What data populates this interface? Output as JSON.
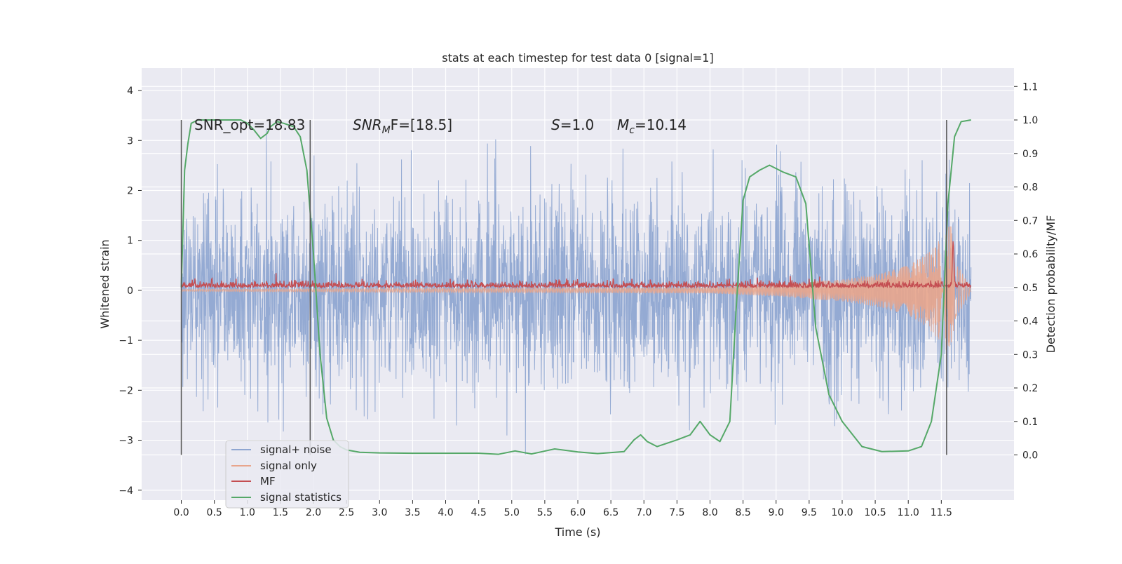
{
  "chart_data": {
    "type": "line",
    "title": "stats at each timestep for test data 0 [signal=1]",
    "xlabel": "Time (s)",
    "ylabel": "Whitened strain",
    "y2label": "Detection probability/MF",
    "xlim": [
      -0.6,
      12.6
    ],
    "ylim": [
      -4.2,
      4.45
    ],
    "y2lim": [
      -0.135,
      1.155
    ],
    "x_ticks": [
      0.0,
      0.5,
      1.0,
      1.5,
      2.0,
      2.5,
      3.0,
      3.5,
      4.0,
      4.5,
      5.0,
      5.5,
      6.0,
      6.5,
      7.0,
      7.5,
      8.0,
      8.5,
      9.0,
      9.5,
      10.0,
      10.5,
      11.0,
      11.5
    ],
    "x_tick_labels": [
      "0.0",
      "0.5",
      "1.0",
      "1.5",
      "2.0",
      "2.5",
      "3.0",
      "3.5",
      "4.0",
      "4.5",
      "5.0",
      "5.5",
      "6.0",
      "6.5",
      "7.0",
      "7.5",
      "8.0",
      "8.5",
      "9.0",
      "9.5",
      "10.0",
      "10.5",
      "11.0",
      "11.5"
    ],
    "y_ticks": [
      4,
      3,
      2,
      1,
      0,
      -1,
      -2,
      -3,
      -4
    ],
    "y_tick_labels": [
      "4",
      "3",
      "2",
      "1",
      "0",
      "−1",
      "−2",
      "−3",
      "−4"
    ],
    "y2_ticks": [
      1.1,
      1.0,
      0.9,
      0.8,
      0.7,
      0.6,
      0.5,
      0.4,
      0.3,
      0.2,
      0.1,
      0.0
    ],
    "y2_tick_labels": [
      "1.1",
      "1.0",
      "0.9",
      "0.8",
      "0.7",
      "0.6",
      "0.5",
      "0.4",
      "0.3",
      "0.2",
      "0.1",
      "0.0"
    ],
    "grid": true,
    "legend_position": "bottom-left",
    "annotations": {
      "snr_opt": "SNR_opt=18.83",
      "snr_mf_main": "SNR",
      "snr_mf_sub": "M",
      "snr_mf_rest": "F=[18.5]",
      "s_main": "S",
      "s_rest": "=1.0",
      "mc_main": "M",
      "mc_sub": "c",
      "mc_rest": "=10.14"
    },
    "vertical_markers": [
      0.0,
      1.95,
      11.58
    ],
    "series": [
      {
        "name": "signal+ noise",
        "color": "#8fa6d1",
        "kind": "noise",
        "x_range": [
          0.0,
          11.95
        ],
        "sigma": 1.0
      },
      {
        "name": "signal only",
        "color": "#e8a58c",
        "kind": "chirp",
        "x_range": [
          0.0,
          11.95
        ],
        "amplitude": [
          [
            0.0,
            0.02
          ],
          [
            8.0,
            0.06
          ],
          [
            9.0,
            0.12
          ],
          [
            10.0,
            0.22
          ],
          [
            10.5,
            0.32
          ],
          [
            11.0,
            0.5
          ],
          [
            11.3,
            0.75
          ],
          [
            11.5,
            1.05
          ],
          [
            11.65,
            1.35
          ],
          [
            11.7,
            0.6
          ],
          [
            11.95,
            0.05
          ]
        ]
      },
      {
        "name": "MF",
        "color": "#c44e52",
        "kind": "mf",
        "x_range": [
          0.0,
          11.95
        ],
        "baseline": 0.5,
        "peak": {
          "x": 11.68,
          "y": 0.63
        }
      },
      {
        "name": "signal statistics",
        "color": "#55a868",
        "kind": "line",
        "x": [
          0.0,
          0.05,
          0.1,
          0.15,
          0.25,
          0.35,
          0.5,
          0.7,
          0.9,
          1.0,
          1.1,
          1.2,
          1.3,
          1.35,
          1.45,
          1.55,
          1.7,
          1.8,
          1.9,
          2.0,
          2.1,
          2.2,
          2.3,
          2.4,
          2.5,
          2.7,
          3.0,
          3.5,
          4.0,
          4.5,
          4.8,
          5.05,
          5.3,
          5.65,
          6.0,
          6.3,
          6.7,
          6.85,
          6.95,
          7.05,
          7.2,
          7.5,
          7.7,
          7.85,
          8.0,
          8.15,
          8.3,
          8.4,
          8.5,
          8.6,
          8.75,
          8.9,
          9.1,
          9.3,
          9.45,
          9.6,
          9.8,
          10.0,
          10.3,
          10.6,
          11.0,
          11.2,
          11.35,
          11.5,
          11.6,
          11.7,
          11.8,
          11.95
        ],
        "y": [
          0.5,
          0.85,
          0.93,
          0.99,
          1.0,
          1.0,
          1.0,
          1.0,
          1.0,
          0.99,
          0.97,
          0.945,
          0.96,
          0.98,
          0.995,
          0.99,
          0.98,
          0.95,
          0.85,
          0.6,
          0.3,
          0.11,
          0.045,
          0.025,
          0.015,
          0.008,
          0.006,
          0.005,
          0.005,
          0.005,
          0.002,
          0.012,
          0.003,
          0.018,
          0.009,
          0.004,
          0.01,
          0.045,
          0.06,
          0.04,
          0.025,
          0.045,
          0.06,
          0.1,
          0.06,
          0.04,
          0.1,
          0.45,
          0.76,
          0.83,
          0.85,
          0.865,
          0.845,
          0.83,
          0.75,
          0.38,
          0.18,
          0.1,
          0.025,
          0.01,
          0.012,
          0.025,
          0.1,
          0.3,
          0.75,
          0.95,
          0.995,
          1.0
        ]
      }
    ]
  }
}
